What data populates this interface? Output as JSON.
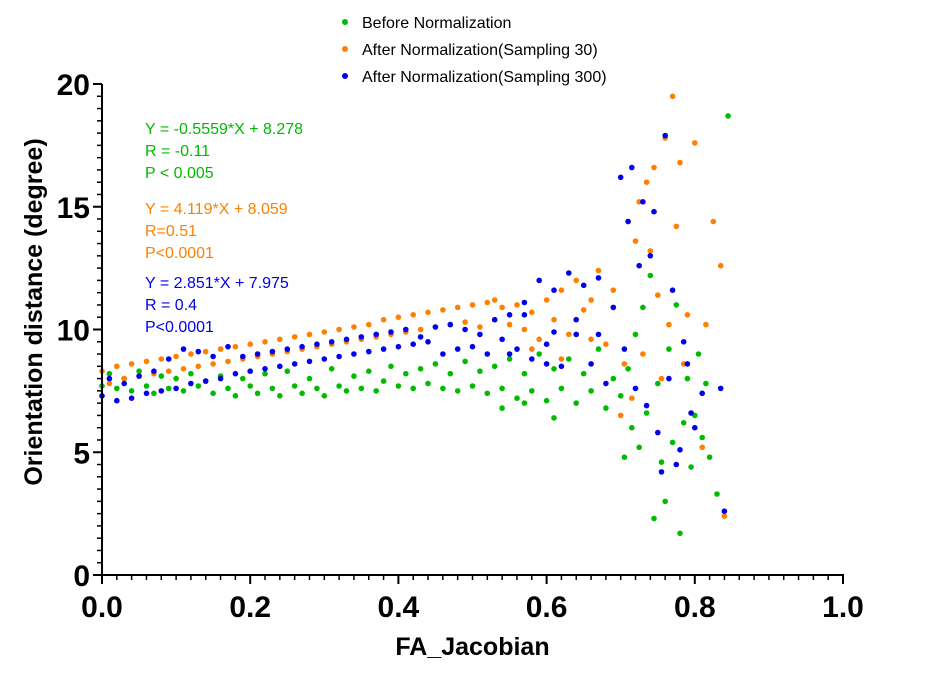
{
  "chart_data": {
    "type": "scatter",
    "title": "",
    "xlabel": "FA_Jacobian",
    "ylabel": "Orientation distance (degree)",
    "xlim": [
      0,
      1.0
    ],
    "ylim": [
      0,
      20
    ],
    "xticks": [
      "0.0",
      "0.2",
      "0.4",
      "0.6",
      "0.8",
      "1.0"
    ],
    "yticks": [
      "0",
      "5",
      "10",
      "15",
      "20"
    ],
    "legend_position": "top",
    "series": [
      {
        "name": "Before Normalization",
        "color": "#00BB00",
        "fit": {
          "equation": "Y = -0.5559*X + 8.278",
          "r": "R = -0.11",
          "p": "P < 0.005"
        },
        "points": [
          [
            0.0,
            7.7
          ],
          [
            0.01,
            8.2
          ],
          [
            0.02,
            7.6
          ],
          [
            0.03,
            8.0
          ],
          [
            0.04,
            7.5
          ],
          [
            0.05,
            8.3
          ],
          [
            0.06,
            7.7
          ],
          [
            0.07,
            7.4
          ],
          [
            0.08,
            8.1
          ],
          [
            0.09,
            7.6
          ],
          [
            0.1,
            8.0
          ],
          [
            0.11,
            7.5
          ],
          [
            0.12,
            8.2
          ],
          [
            0.13,
            7.7
          ],
          [
            0.14,
            7.9
          ],
          [
            0.15,
            7.4
          ],
          [
            0.16,
            8.1
          ],
          [
            0.17,
            7.6
          ],
          [
            0.18,
            7.3
          ],
          [
            0.19,
            8.0
          ],
          [
            0.2,
            7.7
          ],
          [
            0.21,
            7.4
          ],
          [
            0.22,
            8.2
          ],
          [
            0.23,
            7.6
          ],
          [
            0.24,
            7.3
          ],
          [
            0.25,
            8.3
          ],
          [
            0.26,
            7.7
          ],
          [
            0.27,
            7.4
          ],
          [
            0.28,
            8.0
          ],
          [
            0.29,
            7.6
          ],
          [
            0.3,
            7.3
          ],
          [
            0.31,
            8.4
          ],
          [
            0.32,
            7.7
          ],
          [
            0.33,
            7.5
          ],
          [
            0.34,
            8.1
          ],
          [
            0.35,
            7.6
          ],
          [
            0.36,
            8.3
          ],
          [
            0.37,
            7.5
          ],
          [
            0.38,
            7.9
          ],
          [
            0.39,
            8.5
          ],
          [
            0.4,
            7.7
          ],
          [
            0.41,
            8.2
          ],
          [
            0.42,
            7.6
          ],
          [
            0.43,
            8.4
          ],
          [
            0.44,
            7.8
          ],
          [
            0.45,
            8.6
          ],
          [
            0.46,
            7.6
          ],
          [
            0.47,
            8.2
          ],
          [
            0.48,
            7.5
          ],
          [
            0.49,
            8.7
          ],
          [
            0.5,
            7.7
          ],
          [
            0.51,
            8.3
          ],
          [
            0.52,
            7.4
          ],
          [
            0.53,
            8.5
          ],
          [
            0.54,
            7.6
          ],
          [
            0.55,
            8.8
          ],
          [
            0.56,
            7.2
          ],
          [
            0.57,
            8.2
          ],
          [
            0.58,
            7.5
          ],
          [
            0.59,
            9.0
          ],
          [
            0.6,
            7.1
          ],
          [
            0.61,
            8.4
          ],
          [
            0.62,
            7.6
          ],
          [
            0.63,
            8.8
          ],
          [
            0.64,
            7.0
          ],
          [
            0.65,
            8.2
          ],
          [
            0.66,
            7.5
          ],
          [
            0.67,
            9.2
          ],
          [
            0.68,
            6.8
          ],
          [
            0.69,
            8.0
          ],
          [
            0.7,
            7.3
          ],
          [
            0.705,
            4.8
          ],
          [
            0.71,
            8.4
          ],
          [
            0.715,
            6.0
          ],
          [
            0.72,
            9.8
          ],
          [
            0.725,
            5.2
          ],
          [
            0.73,
            10.9
          ],
          [
            0.735,
            6.6
          ],
          [
            0.74,
            12.2
          ],
          [
            0.745,
            2.3
          ],
          [
            0.75,
            7.8
          ],
          [
            0.755,
            4.6
          ],
          [
            0.76,
            3.0
          ],
          [
            0.765,
            9.2
          ],
          [
            0.77,
            5.4
          ],
          [
            0.775,
            11.0
          ],
          [
            0.78,
            1.7
          ],
          [
            0.785,
            6.2
          ],
          [
            0.79,
            8.0
          ],
          [
            0.795,
            4.4
          ],
          [
            0.8,
            6.5
          ],
          [
            0.805,
            9.0
          ],
          [
            0.81,
            5.6
          ],
          [
            0.815,
            7.8
          ],
          [
            0.82,
            4.8
          ],
          [
            0.83,
            3.3
          ],
          [
            0.845,
            18.7
          ],
          [
            0.54,
            6.8
          ],
          [
            0.57,
            7.0
          ],
          [
            0.61,
            6.4
          ]
        ]
      },
      {
        "name": "After Normalization(Sampling 30)",
        "color": "#FF8000",
        "fit": {
          "equation": "Y = 4.119*X + 8.059",
          "r": "R=0.51",
          "p": "P<0.0001"
        },
        "points": [
          [
            0.0,
            8.3
          ],
          [
            0.01,
            7.8
          ],
          [
            0.02,
            8.5
          ],
          [
            0.03,
            8.0
          ],
          [
            0.04,
            8.6
          ],
          [
            0.05,
            8.1
          ],
          [
            0.06,
            8.7
          ],
          [
            0.07,
            8.2
          ],
          [
            0.08,
            8.8
          ],
          [
            0.09,
            8.3
          ],
          [
            0.1,
            8.9
          ],
          [
            0.11,
            8.4
          ],
          [
            0.12,
            9.0
          ],
          [
            0.13,
            8.5
          ],
          [
            0.14,
            9.1
          ],
          [
            0.15,
            8.6
          ],
          [
            0.16,
            9.2
          ],
          [
            0.17,
            8.7
          ],
          [
            0.18,
            9.3
          ],
          [
            0.19,
            8.8
          ],
          [
            0.2,
            9.4
          ],
          [
            0.21,
            8.9
          ],
          [
            0.22,
            9.5
          ],
          [
            0.23,
            9.0
          ],
          [
            0.24,
            9.6
          ],
          [
            0.25,
            9.1
          ],
          [
            0.26,
            9.7
          ],
          [
            0.27,
            9.2
          ],
          [
            0.28,
            9.8
          ],
          [
            0.29,
            9.3
          ],
          [
            0.3,
            9.9
          ],
          [
            0.31,
            9.4
          ],
          [
            0.32,
            10.0
          ],
          [
            0.33,
            9.5
          ],
          [
            0.34,
            10.1
          ],
          [
            0.35,
            9.6
          ],
          [
            0.36,
            10.2
          ],
          [
            0.37,
            9.7
          ],
          [
            0.38,
            10.4
          ],
          [
            0.39,
            9.8
          ],
          [
            0.4,
            10.5
          ],
          [
            0.41,
            9.9
          ],
          [
            0.42,
            10.6
          ],
          [
            0.43,
            10.0
          ],
          [
            0.44,
            10.7
          ],
          [
            0.45,
            10.1
          ],
          [
            0.46,
            10.8
          ],
          [
            0.47,
            10.2
          ],
          [
            0.48,
            10.9
          ],
          [
            0.49,
            10.3
          ],
          [
            0.5,
            11.0
          ],
          [
            0.51,
            10.1
          ],
          [
            0.52,
            11.1
          ],
          [
            0.53,
            10.4
          ],
          [
            0.54,
            10.9
          ],
          [
            0.55,
            10.2
          ],
          [
            0.56,
            11.0
          ],
          [
            0.57,
            10.0
          ],
          [
            0.58,
            10.7
          ],
          [
            0.59,
            9.6
          ],
          [
            0.6,
            11.2
          ],
          [
            0.61,
            10.4
          ],
          [
            0.62,
            11.6
          ],
          [
            0.63,
            9.8
          ],
          [
            0.64,
            12.0
          ],
          [
            0.65,
            10.8
          ],
          [
            0.66,
            11.2
          ],
          [
            0.67,
            12.4
          ],
          [
            0.68,
            9.4
          ],
          [
            0.69,
            11.6
          ],
          [
            0.7,
            6.5
          ],
          [
            0.705,
            8.6
          ],
          [
            0.71,
            14.4
          ],
          [
            0.715,
            7.2
          ],
          [
            0.72,
            13.6
          ],
          [
            0.725,
            15.2
          ],
          [
            0.73,
            9.0
          ],
          [
            0.735,
            16.0
          ],
          [
            0.74,
            13.2
          ],
          [
            0.745,
            16.6
          ],
          [
            0.75,
            11.4
          ],
          [
            0.755,
            8.0
          ],
          [
            0.76,
            17.8
          ],
          [
            0.765,
            10.2
          ],
          [
            0.77,
            19.5
          ],
          [
            0.775,
            14.2
          ],
          [
            0.78,
            16.8
          ],
          [
            0.785,
            8.6
          ],
          [
            0.79,
            10.6
          ],
          [
            0.795,
            6.6
          ],
          [
            0.8,
            17.6
          ],
          [
            0.81,
            5.2
          ],
          [
            0.815,
            10.2
          ],
          [
            0.825,
            14.4
          ],
          [
            0.835,
            12.6
          ],
          [
            0.84,
            2.4
          ],
          [
            0.58,
            9.2
          ],
          [
            0.62,
            8.8
          ],
          [
            0.66,
            9.6
          ],
          [
            0.53,
            11.2
          ]
        ]
      },
      {
        "name": "After Normalization(Sampling 300)",
        "color": "#0000EE",
        "fit": {
          "equation": "Y = 2.851*X + 7.975",
          "r": "R = 0.4",
          "p": "P<0.0001"
        },
        "points": [
          [
            0.0,
            7.3
          ],
          [
            0.01,
            8.0
          ],
          [
            0.02,
            7.1
          ],
          [
            0.03,
            7.8
          ],
          [
            0.04,
            7.2
          ],
          [
            0.05,
            8.1
          ],
          [
            0.06,
            7.4
          ],
          [
            0.07,
            8.3
          ],
          [
            0.08,
            7.5
          ],
          [
            0.09,
            8.8
          ],
          [
            0.1,
            7.6
          ],
          [
            0.11,
            9.2
          ],
          [
            0.12,
            7.8
          ],
          [
            0.13,
            9.1
          ],
          [
            0.14,
            7.9
          ],
          [
            0.15,
            8.9
          ],
          [
            0.16,
            8.0
          ],
          [
            0.17,
            9.3
          ],
          [
            0.18,
            8.2
          ],
          [
            0.19,
            8.9
          ],
          [
            0.2,
            8.3
          ],
          [
            0.21,
            9.0
          ],
          [
            0.22,
            8.4
          ],
          [
            0.23,
            9.1
          ],
          [
            0.24,
            8.5
          ],
          [
            0.25,
            9.2
          ],
          [
            0.26,
            8.6
          ],
          [
            0.27,
            9.3
          ],
          [
            0.28,
            8.7
          ],
          [
            0.29,
            9.4
          ],
          [
            0.3,
            8.8
          ],
          [
            0.31,
            9.5
          ],
          [
            0.32,
            8.9
          ],
          [
            0.33,
            9.6
          ],
          [
            0.34,
            9.0
          ],
          [
            0.35,
            9.7
          ],
          [
            0.36,
            9.1
          ],
          [
            0.37,
            9.8
          ],
          [
            0.38,
            9.2
          ],
          [
            0.39,
            9.9
          ],
          [
            0.4,
            9.3
          ],
          [
            0.41,
            10.0
          ],
          [
            0.42,
            9.4
          ],
          [
            0.43,
            9.7
          ],
          [
            0.44,
            9.5
          ],
          [
            0.45,
            10.1
          ],
          [
            0.46,
            9.0
          ],
          [
            0.47,
            10.2
          ],
          [
            0.48,
            9.2
          ],
          [
            0.49,
            10.0
          ],
          [
            0.5,
            9.3
          ],
          [
            0.51,
            9.8
          ],
          [
            0.52,
            9.0
          ],
          [
            0.53,
            10.4
          ],
          [
            0.54,
            9.6
          ],
          [
            0.55,
            10.6
          ],
          [
            0.56,
            9.2
          ],
          [
            0.57,
            11.1
          ],
          [
            0.58,
            8.8
          ],
          [
            0.59,
            12.0
          ],
          [
            0.6,
            9.4
          ],
          [
            0.61,
            11.6
          ],
          [
            0.62,
            8.5
          ],
          [
            0.63,
            12.3
          ],
          [
            0.64,
            9.8
          ],
          [
            0.65,
            11.8
          ],
          [
            0.66,
            8.6
          ],
          [
            0.67,
            12.1
          ],
          [
            0.68,
            7.8
          ],
          [
            0.69,
            10.9
          ],
          [
            0.7,
            16.2
          ],
          [
            0.705,
            9.2
          ],
          [
            0.71,
            14.4
          ],
          [
            0.715,
            16.6
          ],
          [
            0.72,
            7.6
          ],
          [
            0.725,
            12.6
          ],
          [
            0.73,
            15.2
          ],
          [
            0.735,
            6.9
          ],
          [
            0.74,
            13.0
          ],
          [
            0.745,
            14.8
          ],
          [
            0.75,
            5.8
          ],
          [
            0.755,
            4.2
          ],
          [
            0.76,
            17.9
          ],
          [
            0.765,
            8.0
          ],
          [
            0.77,
            11.6
          ],
          [
            0.775,
            4.5
          ],
          [
            0.78,
            5.1
          ],
          [
            0.785,
            9.5
          ],
          [
            0.79,
            8.6
          ],
          [
            0.795,
            6.6
          ],
          [
            0.8,
            6.0
          ],
          [
            0.81,
            7.4
          ],
          [
            0.835,
            7.6
          ],
          [
            0.84,
            2.6
          ],
          [
            0.57,
            10.6
          ],
          [
            0.61,
            9.9
          ],
          [
            0.64,
            10.4
          ],
          [
            0.67,
            9.8
          ],
          [
            0.6,
            8.6
          ],
          [
            0.55,
            9.0
          ]
        ]
      }
    ]
  }
}
